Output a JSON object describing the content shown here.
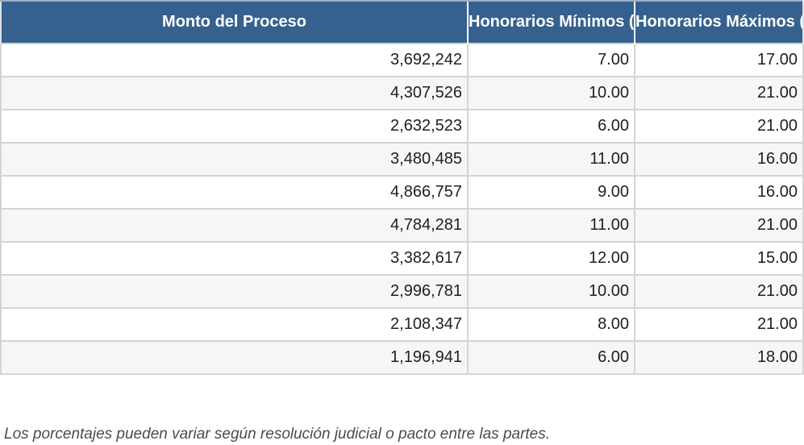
{
  "header": {
    "columns": [
      {
        "label": "Monto del Proceso"
      },
      {
        "label": "Honorarios Mínimos (%)"
      },
      {
        "label": "Honorarios Máximos (%)"
      }
    ]
  },
  "rows": [
    [
      "3,692,242",
      "7.00",
      "17.00"
    ],
    [
      "4,307,526",
      "10.00",
      "21.00"
    ],
    [
      "2,632,523",
      "6.00",
      "21.00"
    ],
    [
      "3,480,485",
      "11.00",
      "16.00"
    ],
    [
      "4,866,757",
      "9.00",
      "16.00"
    ],
    [
      "4,784,281",
      "11.00",
      "21.00"
    ],
    [
      "3,382,617",
      "12.00",
      "15.00"
    ],
    [
      "2,996,781",
      "10.00",
      "21.00"
    ],
    [
      "2,108,347",
      "8.00",
      "21.00"
    ],
    [
      "1,196,941",
      "6.00",
      "18.00"
    ]
  ],
  "footnote": "Los porcentajes pueden variar según resolución judicial o pacto entre las partes.",
  "colors": {
    "header_bg": "#36618F",
    "header_top_edge": "#9FAEC9",
    "header_text": "#FFFFFF",
    "row_bg": "#FFFFFF",
    "row_alt_bg": "#F6F6F6",
    "grid_border": "#D4D4D4",
    "body_text": "#202020",
    "footnote_text": "#4B4B4B"
  },
  "chart_data": {
    "type": "table",
    "columns": [
      "Monto del Proceso",
      "Honorarios Mínimos (%)",
      "Honorarios Máximos (%)"
    ],
    "rows": [
      [
        3692242,
        7.0,
        17.0
      ],
      [
        4307526,
        10.0,
        21.0
      ],
      [
        2632523,
        6.0,
        21.0
      ],
      [
        3480485,
        11.0,
        16.0
      ],
      [
        4866757,
        9.0,
        16.0
      ],
      [
        4784281,
        11.0,
        21.0
      ],
      [
        3382617,
        12.0,
        15.0
      ],
      [
        2996781,
        10.0,
        21.0
      ],
      [
        2108347,
        8.0,
        21.0
      ],
      [
        1196941,
        6.0,
        18.0
      ]
    ],
    "title": "",
    "notes": "Los porcentajes pueden variar según resolución judicial o pacto entre las partes.",
    "layout": {
      "striped_rows": true,
      "header_style": "dark-blue",
      "value_alignment": "right"
    }
  }
}
